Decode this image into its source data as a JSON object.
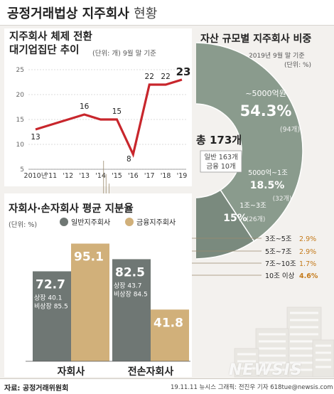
{
  "header": {
    "title_bold": "공정거래법상 지주회사",
    "title_light": "현황"
  },
  "line_panel": {
    "title_line1": "지주회사 체제 전환",
    "title_line2": "대기업집단 추이",
    "unit_note": "(단위: 개)  9월 말 기준",
    "last_value_unit": "개"
  },
  "donut_panel": {
    "title": "자산 규모별 지주회사 비중",
    "date_note": "2019년 9월 말 기준",
    "unit_note": "(단위: %)",
    "center_total": "총 173개",
    "center_general": "일반 163개",
    "center_finance": "금융 10개"
  },
  "bar_panel": {
    "title": "자회사·손자회사 평균 지분율",
    "unit_note": "(단위: %)"
  },
  "footer": {
    "source": "자료: 공정거래위원회",
    "credit": "19.11.11  뉴시스 그래픽: 전진우 기자 618tue@newsis.com",
    "watermark": "NEWSIS"
  },
  "colors": {
    "line": "#c8262c",
    "gray": "#6f7774",
    "gold": "#d1b07a",
    "donut_big": "#8a9b8d",
    "donut_mid": "#7a8a7e",
    "donut_small": "#5b6a60",
    "donut_orange": "#c47a1a"
  },
  "chart_data": [
    {
      "type": "line",
      "x": [
        "2010년",
        "'11",
        "'12",
        "'13",
        "'14",
        "'15",
        "'16",
        "'17",
        "'18",
        "'19"
      ],
      "values": [
        13,
        14,
        15,
        16,
        15,
        15,
        8,
        22,
        22,
        23
      ],
      "labels": [
        {
          "x": "2010년",
          "text": "13"
        },
        {
          "x": "'13",
          "text": "16"
        },
        {
          "x": "'15",
          "text": "15"
        },
        {
          "x": "'16",
          "text": "8"
        },
        {
          "x": "'17",
          "text": "22"
        },
        {
          "x": "'18",
          "text": "22"
        },
        {
          "x": "'19",
          "text": "23"
        }
      ],
      "yticks": [
        5,
        10,
        15,
        20,
        25
      ],
      "ylim": [
        5,
        25
      ],
      "grid": true
    },
    {
      "type": "pie",
      "slices": [
        {
          "label": "~5000억원",
          "value": 54.3,
          "count": "(94개)"
        },
        {
          "label": "5000억~1조",
          "value": 18.5,
          "count": "(32개)"
        },
        {
          "label": "1조~3조",
          "value": 15,
          "count": "(26개)"
        },
        {
          "label": "3조~5조",
          "value": 2.9
        },
        {
          "label": "5조~7조",
          "value": 2.9
        },
        {
          "label": "7조~10조",
          "value": 1.7
        },
        {
          "label": "10조 이상",
          "value": 4.6
        }
      ],
      "display_values": [
        "54.3%",
        "18.5%",
        "15%",
        "2.9%",
        "2.9%",
        "1.7%",
        "4.6%"
      ]
    },
    {
      "type": "bar",
      "categories": [
        "자회사",
        "전손자회사"
      ],
      "series": [
        {
          "name": "일반지주회사",
          "values": [
            72.7,
            82.5
          ]
        },
        {
          "name": "금융지주회사",
          "values": [
            95.1,
            41.8
          ]
        }
      ],
      "annotations": [
        {
          "category": "자회사",
          "series": "일반지주회사",
          "lines": [
            "상장 40.1",
            "비상장 85.5"
          ]
        },
        {
          "category": "전손자회사",
          "series": "일반지주회사",
          "lines": [
            "상장 43.7",
            "비상장 84.5"
          ]
        }
      ],
      "ylim": [
        0,
        100
      ]
    }
  ]
}
